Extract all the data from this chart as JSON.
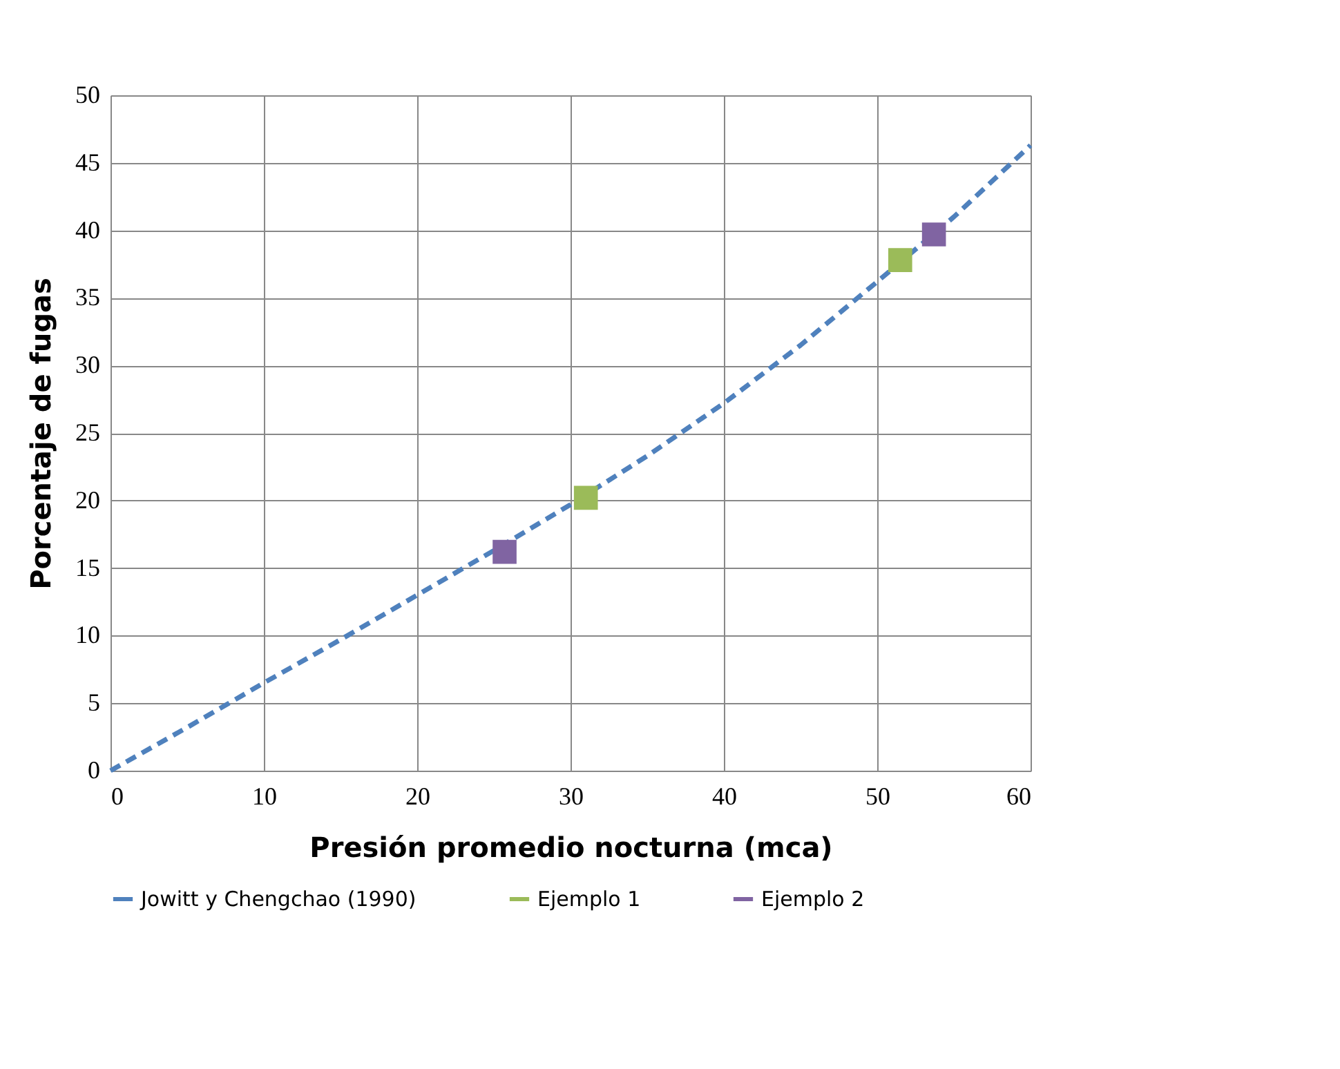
{
  "chart_data": {
    "type": "line",
    "xlabel": "Presión promedio nocturna (mca)",
    "ylabel": "Porcentaje de fugas",
    "xlim": [
      0,
      60
    ],
    "xticks": [
      0,
      10,
      20,
      30,
      40,
      50,
      60
    ],
    "ylim": [
      0,
      50
    ],
    "yticks": [
      0,
      5,
      10,
      15,
      20,
      25,
      30,
      35,
      40,
      45,
      50
    ],
    "grid": true,
    "legend": "bottom",
    "series": [
      {
        "name": "Jowitt y Chengchao (1990)",
        "color": "#4f81bd",
        "line_style": "dashed",
        "x": [
          0,
          5,
          10,
          15,
          20,
          25,
          30,
          35,
          40,
          45,
          50,
          55,
          60
        ],
        "values": [
          0,
          3.2,
          6.5,
          9.7,
          13.0,
          16.3,
          19.7,
          23.3,
          27.2,
          31.5,
          36.2,
          41.0,
          46.3
        ]
      },
      {
        "name": "Ejemplo 1",
        "color": "#9bbb59",
        "type": "scatter",
        "marker": "square",
        "x": [
          31,
          51.5
        ],
        "values": [
          20.2,
          37.8
        ]
      },
      {
        "name": "Ejemplo 2",
        "color": "#8064a2",
        "type": "scatter",
        "marker": "square",
        "x": [
          25.7,
          53.7
        ],
        "values": [
          16.2,
          39.7
        ]
      }
    ]
  }
}
